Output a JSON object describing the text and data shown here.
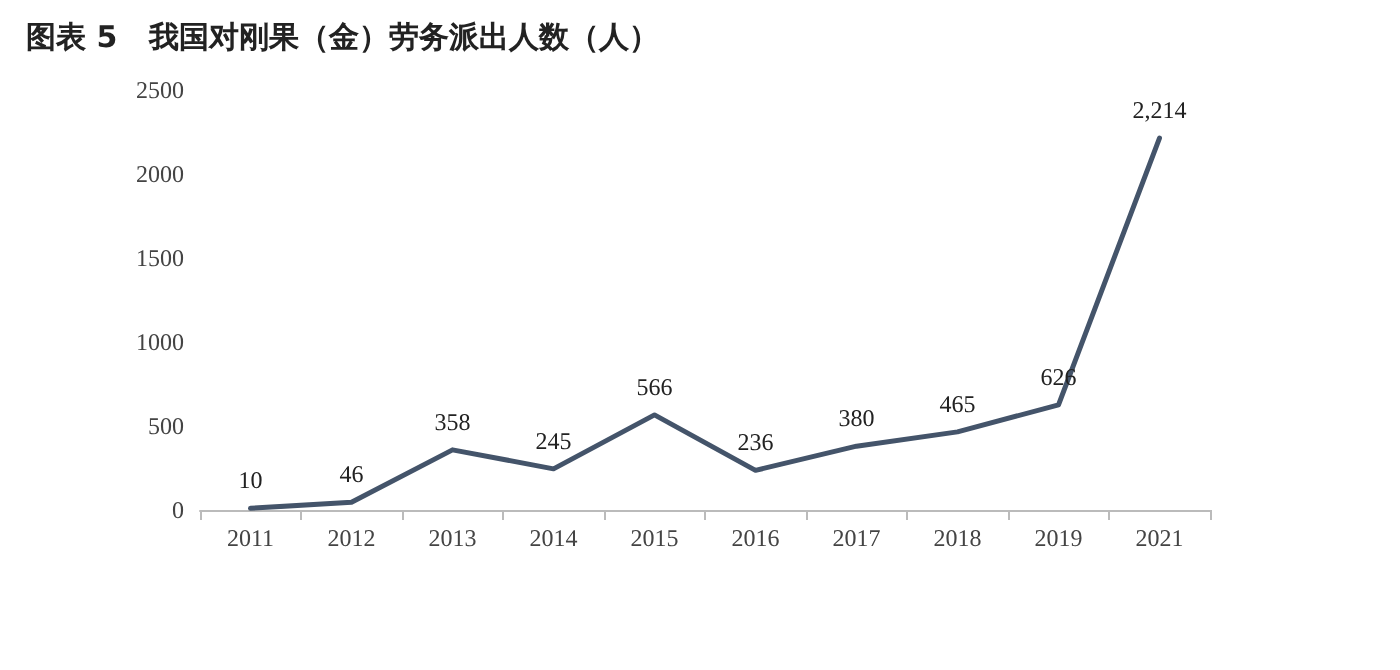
{
  "chart_data": {
    "type": "line",
    "title": "图表 5   我国对刚果（金）劳务派出人数（人）",
    "categories": [
      "2011",
      "2012",
      "2013",
      "2014",
      "2015",
      "2016",
      "2017",
      "2018",
      "2019",
      "2021"
    ],
    "series": [
      {
        "color": "#44546a",
        "values": [
          10,
          46,
          358,
          245,
          566,
          236,
          380,
          465,
          626,
          2214
        ],
        "value_labels": [
          "10",
          "46",
          "358",
          "245",
          "566",
          "236",
          "380",
          "465",
          "626",
          "2,214"
        ]
      }
    ],
    "ylim": [
      0,
      2500
    ],
    "yticks": [
      0,
      500,
      1000,
      1500,
      2000,
      2500
    ],
    "grid": false,
    "marker": "none",
    "line_style": "solid"
  }
}
